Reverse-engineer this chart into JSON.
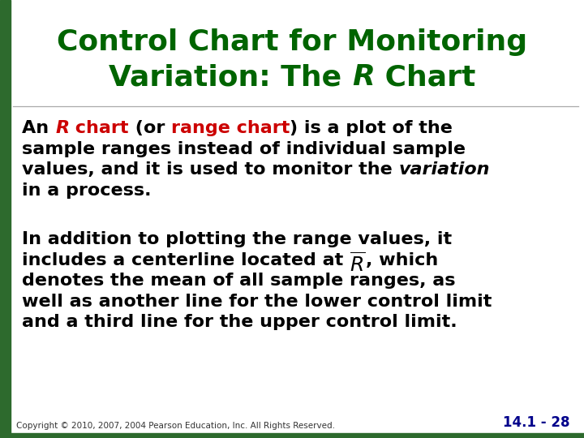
{
  "title_line1": "Control Chart for Monitoring",
  "title_line2_pre": "Variation: The ",
  "title_line2_R": "R",
  "title_line2_post": " Chart",
  "title_color": "#006400",
  "bg_color": "#ffffff",
  "left_bar_color": "#2d6a2d",
  "title_font_size": 26,
  "body_font_size": 16,
  "footer_copyright": "Copyright © 2010, 2007, 2004 Pearson Education, Inc. All Rights Reserved.",
  "footer_page": "14.1 - 28",
  "footer_color_page": "#00008B",
  "footer_color_copy": "#333333",
  "red_color": "#cc0000",
  "black_color": "#000000",
  "sep_line_color": "#aaaaaa",
  "para1_lines": [
    [
      {
        "t": "An ",
        "c": "#000000",
        "b": true,
        "i": false
      },
      {
        "t": "R",
        "c": "#cc0000",
        "b": true,
        "i": true
      },
      {
        "t": " chart",
        "c": "#cc0000",
        "b": true,
        "i": false
      },
      {
        "t": " (or ",
        "c": "#000000",
        "b": true,
        "i": false
      },
      {
        "t": "range chart",
        "c": "#cc0000",
        "b": true,
        "i": false
      },
      {
        "t": ") is a plot of the",
        "c": "#000000",
        "b": true,
        "i": false
      }
    ],
    [
      {
        "t": "sample ranges instead of individual sample",
        "c": "#000000",
        "b": true,
        "i": false
      }
    ],
    [
      {
        "t": "values, and it is used to monitor the ",
        "c": "#000000",
        "b": true,
        "i": false
      },
      {
        "t": "variation",
        "c": "#000000",
        "b": true,
        "i": true
      }
    ],
    [
      {
        "t": "in a process.",
        "c": "#000000",
        "b": true,
        "i": false
      }
    ]
  ],
  "para2_lines": [
    [
      {
        "t": "In addition to plotting the range values, it",
        "c": "#000000",
        "b": true,
        "i": false
      }
    ],
    [
      {
        "t": "includes a centerline located at ",
        "c": "#000000",
        "b": true,
        "i": false
      },
      {
        "t": "RBAR",
        "c": "#000000",
        "b": false,
        "i": true
      },
      {
        "t": ", which",
        "c": "#000000",
        "b": true,
        "i": false
      }
    ],
    [
      {
        "t": "denotes the mean of all sample ranges, as",
        "c": "#000000",
        "b": true,
        "i": false
      }
    ],
    [
      {
        "t": "well as another line for the lower control limit",
        "c": "#000000",
        "b": true,
        "i": false
      }
    ],
    [
      {
        "t": "and a third line for the upper control limit.",
        "c": "#000000",
        "b": true,
        "i": false
      }
    ]
  ]
}
